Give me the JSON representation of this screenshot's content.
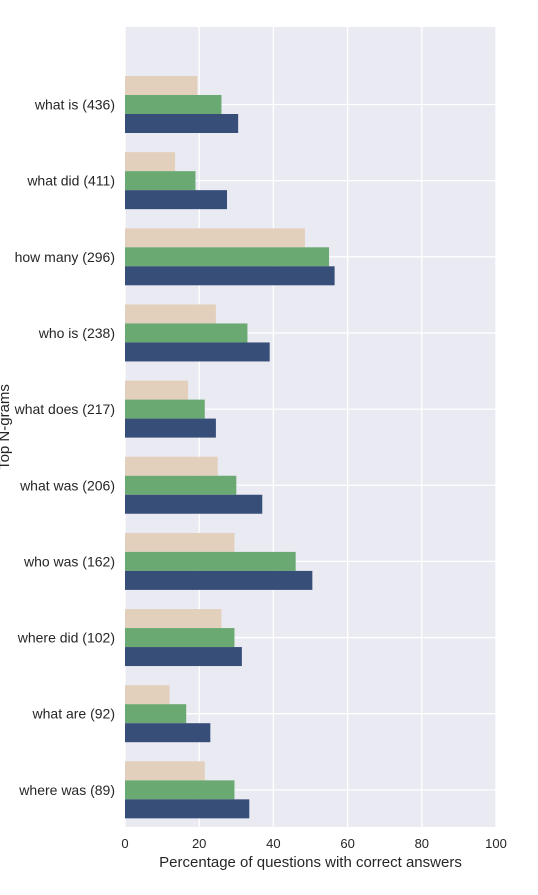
{
  "chart_data": {
    "type": "bar",
    "orientation": "horizontal",
    "title": "",
    "xlabel": "Percentage of questions with correct answers",
    "ylabel": "Top N-grams",
    "xlim": [
      0,
      100
    ],
    "xticks": [
      0,
      20,
      40,
      60,
      80,
      100
    ],
    "grid": true,
    "categories": [
      "what is (436)",
      "what did (411)",
      "how many (296)",
      "who is (238)",
      "what does (217)",
      "what was (206)",
      "who was (162)",
      "where did (102)",
      "what are (92)",
      "where was (89)"
    ],
    "series": [
      {
        "color": "#e3d0bc",
        "values": [
          19.5,
          13.5,
          48.5,
          24.5,
          17,
          25,
          29.5,
          26,
          12,
          21.5
        ]
      },
      {
        "color": "#6aaa72",
        "values": [
          26,
          19,
          55,
          33,
          21.5,
          30,
          46,
          29.5,
          16.5,
          29.5
        ]
      },
      {
        "color": "#374e78",
        "values": [
          30.5,
          27.5,
          56.5,
          39,
          24.5,
          37,
          50.5,
          31.5,
          23,
          33.5
        ]
      }
    ],
    "colors": {
      "background": "#eaeaf2",
      "grid": "#ffffff",
      "text": "#262626"
    }
  }
}
